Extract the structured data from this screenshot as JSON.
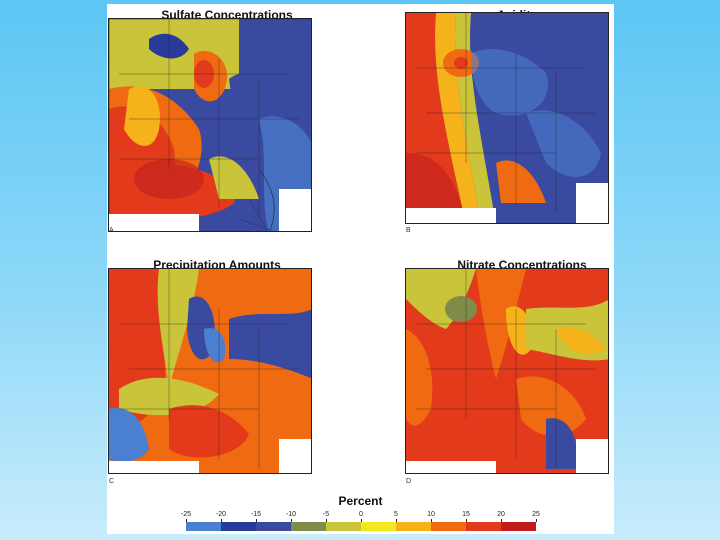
{
  "panels": [
    {
      "title": "Sulfate Concentrations",
      "letter": "A"
    },
    {
      "title": "Acidity",
      "letter": "B"
    },
    {
      "title": "Precipitation Amounts",
      "letter": "C"
    },
    {
      "title": "Nitrate Concentrations",
      "letter": "D"
    }
  ],
  "legend": {
    "title": "Percent",
    "ticks": [
      "-25",
      "-20",
      "-15",
      "-10",
      "-5",
      "0",
      "5",
      "10",
      "15",
      "20",
      "25"
    ],
    "colors": [
      "#4b7fcf",
      "#2a3a9a",
      "#3a4aa0",
      "#7f8c4a",
      "#c9c43a",
      "#f2e81e",
      "#f5b21a",
      "#f06a12",
      "#e23a1a",
      "#c01e1e"
    ]
  }
}
